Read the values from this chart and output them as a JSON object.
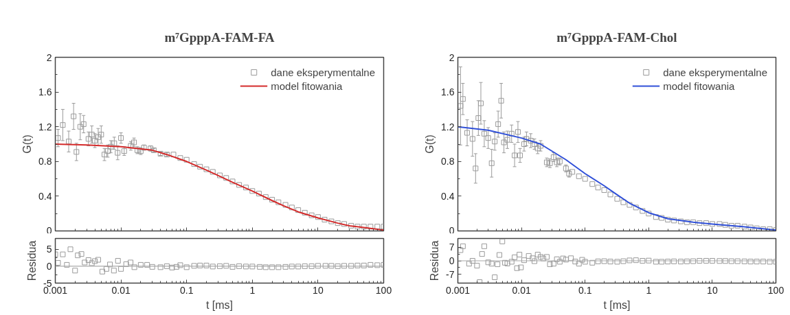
{
  "chart_data": [
    {
      "type": "scatter",
      "title": "m⁷GpppA-FAM-FA",
      "ylabel": "G(t)",
      "log": "x",
      "xlim": [
        0.001,
        100
      ],
      "xticks": [
        0.001,
        0.01,
        0.1,
        1,
        10,
        100
      ],
      "ylim": [
        0,
        2
      ],
      "yticks": [
        0,
        0.4,
        0.8,
        1.2,
        1.6,
        2
      ],
      "tick_labels": "y",
      "legend": "top right",
      "series": [
        {
          "name": "dane eksperymentalne",
          "marker": "square",
          "color": "#9a9a9a",
          "x": [
            0.0011,
            0.0013,
            0.0016,
            0.0019,
            0.0021,
            0.0024,
            0.0027,
            0.0032,
            0.0036,
            0.004,
            0.0045,
            0.005,
            0.0056,
            0.0063,
            0.007,
            0.0079,
            0.0089,
            0.01,
            0.0112,
            0.0141,
            0.0158,
            0.0178,
            0.02,
            0.0224,
            0.0282,
            0.0316,
            0.04,
            0.05,
            0.063,
            0.08,
            0.1,
            0.13,
            0.16,
            0.2,
            0.25,
            0.32,
            0.4,
            0.5,
            0.63,
            0.8,
            1,
            1.26,
            1.6,
            2,
            2.5,
            3.2,
            4,
            5,
            6.3,
            8,
            10,
            12.6,
            16,
            20,
            25,
            32,
            40,
            50,
            63,
            80,
            100
          ],
          "values": [
            1.07,
            1.22,
            1.03,
            1.32,
            0.91,
            1.2,
            1.23,
            1.06,
            1.11,
            1.04,
            1.08,
            1.11,
            0.88,
            0.92,
            0.97,
            1.01,
            0.9,
            1.07,
            0.92,
            0.98,
            1.02,
            0.93,
            0.92,
            0.96,
            0.95,
            0.93,
            0.89,
            0.88,
            0.88,
            0.84,
            0.82,
            0.77,
            0.74,
            0.71,
            0.68,
            0.64,
            0.61,
            0.57,
            0.53,
            0.5,
            0.46,
            0.43,
            0.39,
            0.36,
            0.33,
            0.3,
            0.27,
            0.24,
            0.21,
            0.18,
            0.16,
            0.13,
            0.11,
            0.09,
            0.08,
            0.06,
            0.05,
            0.05,
            0.05,
            0.05,
            0.05
          ],
          "errors": [
            0.1,
            0.18,
            0.12,
            0.15,
            0.1,
            0.15,
            0.1,
            0.08,
            0.1,
            0.08,
            0.1,
            0.1,
            0.07,
            0.07,
            0.07,
            0.07,
            0.08,
            0.06,
            0.05,
            0.05,
            0.05,
            0.04,
            0.04,
            0.03,
            0.03,
            0.02,
            0.02,
            0.02,
            null,
            null,
            null,
            null,
            null,
            null,
            null,
            null,
            null,
            null,
            null,
            null,
            null,
            null,
            null,
            null,
            null,
            null,
            null,
            null,
            null,
            null,
            null,
            null,
            null,
            null,
            null,
            null,
            null,
            null,
            null,
            null,
            null
          ]
        },
        {
          "name": "model fitowania",
          "type": "line",
          "marker": "none",
          "color": "#d42a2a",
          "x": [
            0.001,
            0.003,
            0.01,
            0.03,
            0.05,
            0.1,
            0.2,
            0.3,
            0.5,
            1,
            2,
            3,
            5,
            10,
            20,
            30,
            50,
            100
          ],
          "values": [
            1.0,
            0.99,
            0.97,
            0.93,
            0.88,
            0.8,
            0.7,
            0.64,
            0.56,
            0.46,
            0.35,
            0.29,
            0.22,
            0.15,
            0.09,
            0.06,
            0.04,
            0.01
          ]
        }
      ]
    },
    {
      "type": "scatter",
      "xlabel": "t [ms]",
      "ylabel": "Residua",
      "log": "x",
      "xlim": [
        0.001,
        100
      ],
      "xticks": [
        0.001,
        0.01,
        0.1,
        1,
        10,
        100
      ],
      "ylim": [
        -5,
        8.2
      ],
      "yticks": [
        -5,
        0,
        5
      ],
      "ref_lines": [
        {
          "axis": "y",
          "value": 0,
          "color": "#aaaaaa"
        }
      ],
      "series": [
        {
          "marker": "square",
          "color": "#9a9a9a",
          "x": [
            0.001,
            0.0011,
            0.0013,
            0.0015,
            0.0017,
            0.002,
            0.0022,
            0.0025,
            0.0028,
            0.0032,
            0.0036,
            0.004,
            0.0045,
            0.0052,
            0.006,
            0.0068,
            0.0078,
            0.009,
            0.01,
            0.012,
            0.014,
            0.016,
            0.02,
            0.025,
            0.03,
            0.04,
            0.05,
            0.06,
            0.07,
            0.08,
            0.1,
            0.13,
            0.16,
            0.2,
            0.25,
            0.32,
            0.4,
            0.5,
            0.63,
            0.8,
            1,
            1.3,
            1.6,
            2,
            2.5,
            3.2,
            4,
            5,
            6.3,
            8,
            10,
            13,
            16,
            20,
            25,
            32,
            40,
            50,
            63,
            80,
            100
          ],
          "values": [
            3.5,
            1,
            3.5,
            0.4,
            5,
            -1.3,
            3.2,
            3.6,
            1.1,
            1.8,
            0.9,
            1.5,
            1.9,
            -1.6,
            -0.8,
            0.5,
            -1.3,
            1.6,
            -0.8,
            0.6,
            1.1,
            -0.3,
            0.4,
            0.4,
            -0.2,
            -0.3,
            0,
            -0.4,
            -0.2,
            0.3,
            -0.3,
            0.1,
            0.2,
            0.2,
            -0.1,
            0,
            0.1,
            -0.2,
            0,
            -0.1,
            -0.1,
            -0.2,
            -0.3,
            -0.3,
            -0.3,
            -0.2,
            -0.1,
            -0.1,
            0,
            0,
            0.1,
            0.1,
            0.1,
            0,
            0.1,
            0.1,
            0.2,
            0.2,
            0.4,
            0.3,
            0.4
          ]
        }
      ]
    },
    {
      "type": "scatter",
      "title": "m⁷GpppA-FAM-Chol",
      "ylabel": "G(t)",
      "log": "x",
      "xlim": [
        0.001,
        100
      ],
      "xticks": [
        0.001,
        0.01,
        0.1,
        1,
        10,
        100
      ],
      "ylim": [
        0,
        2
      ],
      "yticks": [
        0,
        0.4,
        0.8,
        1.2,
        1.6,
        2
      ],
      "tick_labels": "y",
      "legend": "top right",
      "series": [
        {
          "name": "dane eksperymentalne",
          "marker": "square",
          "color": "#9a9a9a",
          "x": [
            0.0011,
            0.0012,
            0.0014,
            0.0017,
            0.0019,
            0.0021,
            0.0023,
            0.0026,
            0.003,
            0.0034,
            0.0038,
            0.0043,
            0.0048,
            0.0053,
            0.006,
            0.007,
            0.0078,
            0.0088,
            0.0095,
            0.011,
            0.012,
            0.014,
            0.016,
            0.018,
            0.02,
            0.025,
            0.028,
            0.032,
            0.036,
            0.04,
            0.05,
            0.056,
            0.063,
            0.08,
            0.1,
            0.13,
            0.16,
            0.2,
            0.25,
            0.32,
            0.4,
            0.5,
            0.63,
            0.8,
            1,
            1.3,
            1.6,
            2,
            2.5,
            3.2,
            4,
            5,
            6.3,
            8,
            10,
            13,
            16,
            20,
            25,
            32,
            40,
            50,
            63,
            80,
            100
          ],
          "values": [
            1.44,
            1.52,
            1.13,
            1.06,
            0.72,
            1.3,
            1.47,
            1.12,
            1.07,
            0.78,
            1.03,
            1.23,
            1.5,
            1.02,
            1.05,
            1.12,
            0.87,
            1.14,
            0.87,
            1.0,
            1.06,
            1.04,
            1.0,
            0.95,
            0.98,
            0.79,
            0.78,
            0.85,
            0.79,
            0.8,
            0.72,
            0.66,
            0.68,
            0.63,
            0.6,
            0.54,
            0.5,
            0.47,
            0.42,
            0.37,
            0.33,
            0.3,
            0.27,
            0.23,
            0.2,
            0.16,
            0.15,
            0.13,
            0.12,
            0.11,
            0.1,
            0.1,
            0.09,
            0.09,
            0.08,
            0.08,
            0.07,
            0.06,
            0.06,
            0.05,
            0.04,
            0.03,
            0.02,
            0.02,
            0.01
          ],
          "errors": [
            0.45,
            0.18,
            0.15,
            0.2,
            0.17,
            0.2,
            0.24,
            0.15,
            0.12,
            0.16,
            0.1,
            0.15,
            0.2,
            0.12,
            0.1,
            0.1,
            0.13,
            0.12,
            0.08,
            0.08,
            0.08,
            0.08,
            0.06,
            0.06,
            0.06,
            0.05,
            0.05,
            0.05,
            0.05,
            0.04,
            0.04,
            0.04,
            null,
            null,
            null,
            null,
            null,
            null,
            null,
            null,
            null,
            null,
            null,
            null,
            null,
            null,
            null,
            null,
            null,
            null,
            null,
            null,
            null,
            null,
            null,
            null,
            null,
            null,
            null,
            null,
            null,
            null,
            null,
            null,
            null
          ]
        },
        {
          "name": "model fitowania",
          "type": "line",
          "marker": "none",
          "color": "#2f4fd8",
          "x": [
            0.001,
            0.003,
            0.01,
            0.02,
            0.05,
            0.1,
            0.2,
            0.3,
            0.5,
            1,
            2,
            5,
            10,
            30,
            100
          ],
          "values": [
            1.2,
            1.16,
            1.07,
            1.0,
            0.82,
            0.66,
            0.52,
            0.43,
            0.32,
            0.21,
            0.14,
            0.1,
            0.08,
            0.05,
            0.01
          ]
        }
      ]
    },
    {
      "type": "scatter",
      "xlabel": "t [ms]",
      "ylabel": "Residua",
      "log": "x",
      "xlim": [
        0.001,
        100
      ],
      "xticks": [
        0.001,
        0.01,
        0.1,
        1,
        10,
        100
      ],
      "ylim": [
        -11.5,
        11.5
      ],
      "yticks": [
        -7,
        0,
        7
      ],
      "ref_lines": [
        {
          "axis": "y",
          "value": 0,
          "color": "#aaaaaa"
        }
      ],
      "series": [
        {
          "marker": "square",
          "color": "#9a9a9a",
          "x": [
            0.0011,
            0.0012,
            0.0015,
            0.0017,
            0.002,
            0.0022,
            0.0024,
            0.0026,
            0.003,
            0.0034,
            0.0038,
            0.0042,
            0.0045,
            0.005,
            0.0055,
            0.006,
            0.007,
            0.0078,
            0.0085,
            0.0093,
            0.0098,
            0.011,
            0.013,
            0.015,
            0.016,
            0.018,
            0.02,
            0.022,
            0.025,
            0.028,
            0.032,
            0.036,
            0.04,
            0.045,
            0.05,
            0.06,
            0.07,
            0.08,
            0.09,
            0.1,
            0.13,
            0.16,
            0.2,
            0.25,
            0.32,
            0.4,
            0.5,
            0.63,
            0.8,
            1,
            1.3,
            1.6,
            2,
            2.5,
            3.2,
            4,
            5,
            6.3,
            8,
            10,
            13,
            16,
            20,
            25,
            32,
            40,
            50,
            63,
            80,
            100
          ],
          "values": [
            5.5,
            7.5,
            -1.5,
            0,
            -2.5,
            -11,
            3.5,
            7.5,
            -0.8,
            -1.5,
            -8.5,
            -1.8,
            3,
            10,
            -1,
            -1.4,
            -0.5,
            1.8,
            -3.8,
            3.2,
            -3.4,
            0.3,
            2.5,
            1.3,
            -0.2,
            3.2,
            2,
            1.2,
            2,
            -1.8,
            -1.5,
            0.8,
            -0.5,
            1.2,
            0.6,
            1.3,
            -0.4,
            -1.5,
            0.5,
            -0.5,
            -1,
            -0.3,
            -0.2,
            -0.4,
            -0.5,
            -0.2,
            0.2,
            0.3,
            0,
            0.1,
            -0.5,
            -0.5,
            -0.4,
            -0.3,
            -0.4,
            -0.3,
            -0.2,
            0,
            0,
            0,
            -0.1,
            -0.1,
            -0.2,
            -0.2,
            -0.3,
            -0.4,
            -0.4,
            -0.4,
            -0.5,
            -0.5
          ]
        }
      ]
    }
  ]
}
